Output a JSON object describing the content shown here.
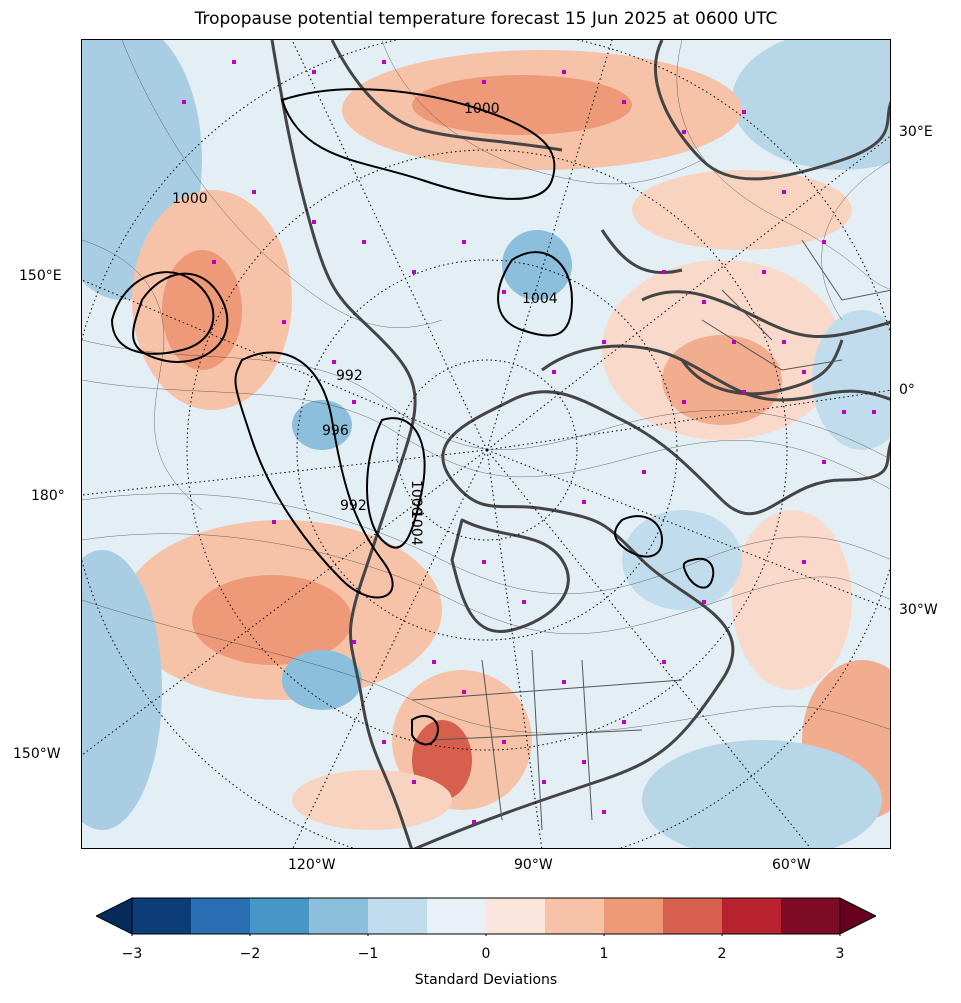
{
  "title": "Tropopause potential temperature forecast 15 Jun 2025 at 0600 UTC",
  "map": {
    "projection": "north-polar-stereographic",
    "field": "tropopause potential temperature anomaly",
    "pressure_contour_labels": [
      "1000",
      "1004",
      "1000",
      "996",
      "992",
      "1000",
      "1004",
      "992"
    ],
    "longitude_labels": {
      "right_top": "30°E",
      "right_mid": "0°",
      "right_low": "30°W",
      "left_top": "150°E",
      "left_mid": "180°",
      "left_low": "150°W",
      "bottom_left": "120°W",
      "bottom_mid": "90°W",
      "bottom_right": "60°W"
    },
    "colors": {
      "coastline": "#444444",
      "station_marker": "#c000c0",
      "gridline": "#000000"
    }
  },
  "colorbar": {
    "label": "Standard Deviations",
    "ticks": [
      "−3",
      "−2",
      "−1",
      "0",
      "1",
      "2",
      "3"
    ],
    "tick_values": [
      -3,
      -2,
      -1,
      0,
      1,
      2,
      3
    ],
    "extend": "both",
    "colors": [
      "#0b3c78",
      "#2a6fb3",
      "#4696c6",
      "#8bbfdc",
      "#c1dded",
      "#e8f1f5",
      "#fbe5dc",
      "#f6c3a8",
      "#ee9a79",
      "#d6604d",
      "#b8222f",
      "#7e0b25"
    ],
    "extend_low_color": "#052b5a",
    "extend_high_color": "#67001f"
  }
}
